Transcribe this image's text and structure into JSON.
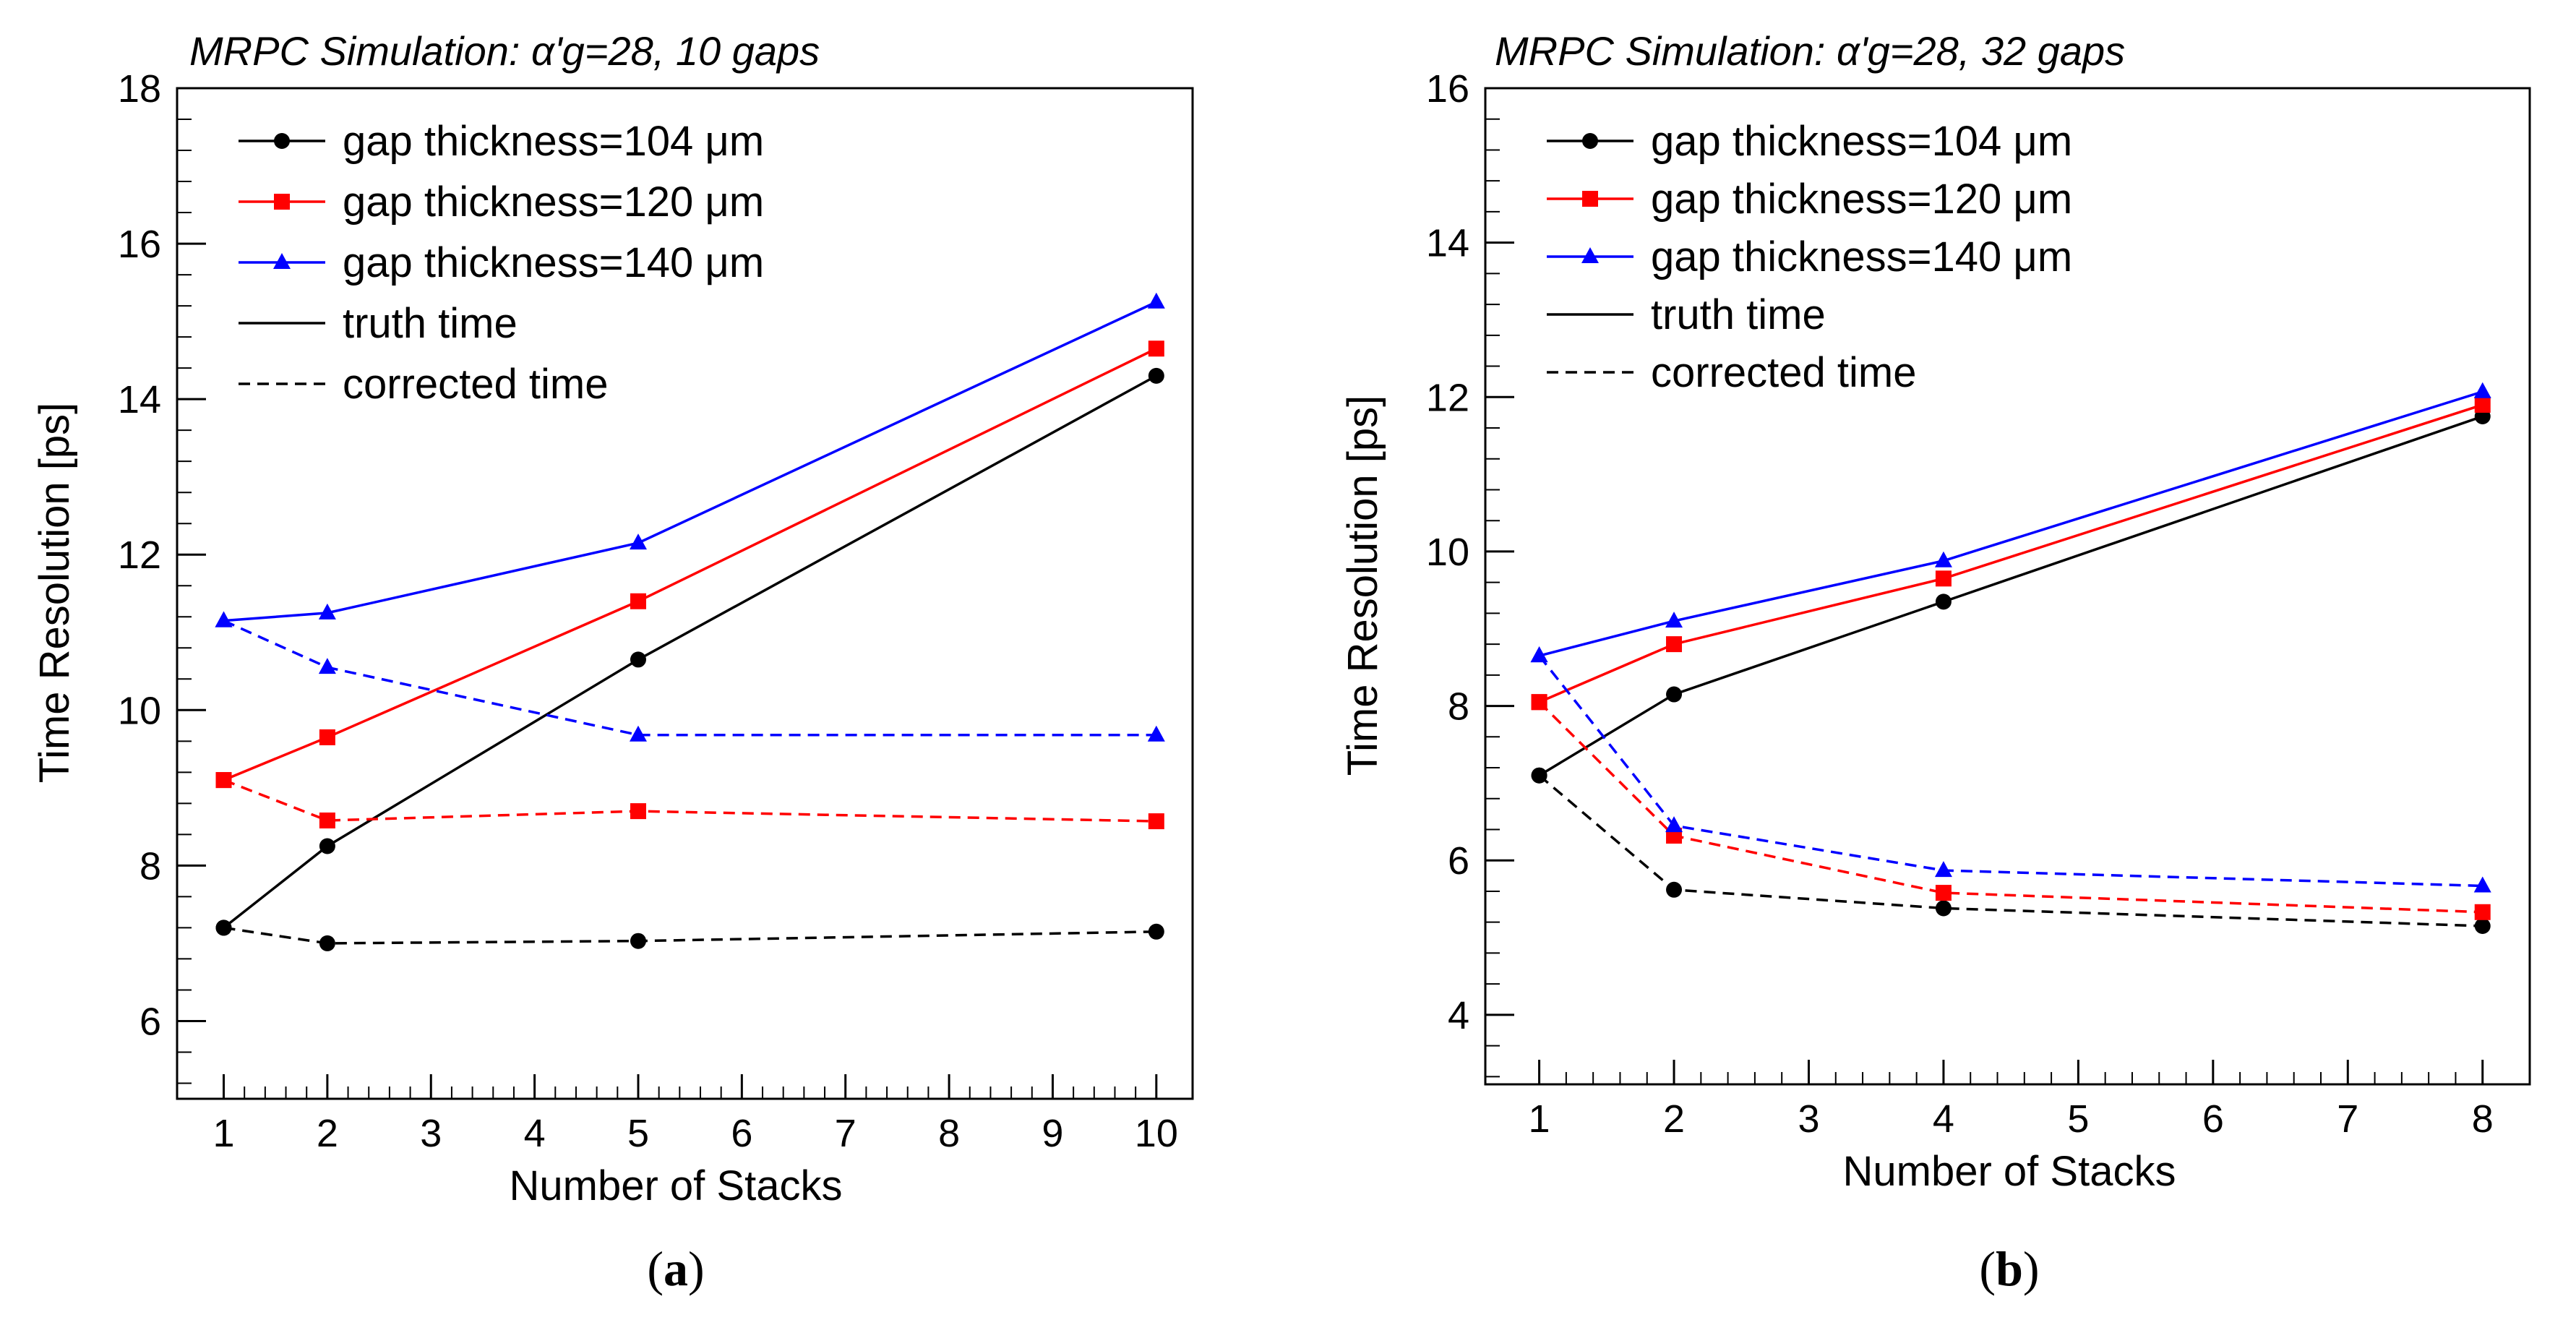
{
  "chart_data": [
    {
      "type": "line",
      "panel_label": "a",
      "title": "MRPC Simulation:  α'g=28, 10 gaps",
      "xlabel": "Number of Stacks",
      "ylabel": "Time Resolution [ps]",
      "xlim": [
        0.55,
        10.35
      ],
      "ylim": [
        5.0,
        18.0
      ],
      "x_ticks": [
        1,
        2,
        3,
        4,
        5,
        6,
        7,
        8,
        9,
        10
      ],
      "y_ticks": [
        6,
        8,
        10,
        12,
        14,
        16,
        18
      ],
      "x": [
        1,
        2,
        5,
        10
      ],
      "legend": [
        {
          "label": "gap thickness=104 μm",
          "color": "#000000",
          "marker": "circle",
          "style": "solid"
        },
        {
          "label": "gap thickness=120 μm",
          "color": "#ff0000",
          "marker": "square",
          "style": "solid"
        },
        {
          "label": "gap thickness=140 μm",
          "color": "#0000ff",
          "marker": "triangle",
          "style": "solid"
        },
        {
          "label": "truth time",
          "color": "#000000",
          "marker": "none",
          "style": "solid"
        },
        {
          "label": "corrected time",
          "color": "#000000",
          "marker": "none",
          "style": "dashed"
        }
      ],
      "series": [
        {
          "name": "104 μm truth",
          "color": "#000000",
          "marker": "circle",
          "style": "solid",
          "values": [
            7.2,
            8.25,
            10.65,
            14.3
          ]
        },
        {
          "name": "120 μm truth",
          "color": "#ff0000",
          "marker": "square",
          "style": "solid",
          "values": [
            9.1,
            9.65,
            11.4,
            14.65
          ]
        },
        {
          "name": "140 μm truth",
          "color": "#0000ff",
          "marker": "triangle",
          "style": "solid",
          "values": [
            11.15,
            11.25,
            12.15,
            15.25
          ]
        },
        {
          "name": "104 μm corrected",
          "color": "#000000",
          "marker": "circle",
          "style": "dashed",
          "values": [
            7.2,
            7.0,
            7.03,
            7.15
          ]
        },
        {
          "name": "120 μm corrected",
          "color": "#ff0000",
          "marker": "square",
          "style": "dashed",
          "values": [
            9.1,
            8.58,
            8.7,
            8.57
          ]
        },
        {
          "name": "140 μm corrected",
          "color": "#0000ff",
          "marker": "triangle",
          "style": "dashed",
          "values": [
            11.15,
            10.55,
            9.68,
            9.68
          ]
        }
      ]
    },
    {
      "type": "line",
      "panel_label": "b",
      "title": "MRPC Simulation:  α'g=28, 32 gaps",
      "xlabel": "Number of Stacks",
      "ylabel": "Time Resolution [ps]",
      "xlim": [
        0.6,
        8.35
      ],
      "ylim": [
        3.1,
        16.0
      ],
      "x_ticks": [
        1,
        2,
        3,
        4,
        5,
        6,
        7,
        8
      ],
      "y_ticks": [
        4,
        6,
        8,
        10,
        12,
        14,
        16
      ],
      "x": [
        1,
        2,
        4,
        8
      ],
      "legend": [
        {
          "label": "gap thickness=104 μm",
          "color": "#000000",
          "marker": "circle",
          "style": "solid"
        },
        {
          "label": "gap thickness=120 μm",
          "color": "#ff0000",
          "marker": "square",
          "style": "solid"
        },
        {
          "label": "gap thickness=140 μm",
          "color": "#0000ff",
          "marker": "triangle",
          "style": "solid"
        },
        {
          "label": "truth time",
          "color": "#000000",
          "marker": "none",
          "style": "solid"
        },
        {
          "label": "corrected time",
          "color": "#000000",
          "marker": "none",
          "style": "dashed"
        }
      ],
      "series": [
        {
          "name": "104 μm truth",
          "color": "#000000",
          "marker": "circle",
          "style": "solid",
          "values": [
            7.1,
            8.15,
            9.35,
            11.75
          ]
        },
        {
          "name": "120 μm truth",
          "color": "#ff0000",
          "marker": "square",
          "style": "solid",
          "values": [
            8.05,
            8.8,
            9.65,
            11.9
          ]
        },
        {
          "name": "140 μm truth",
          "color": "#0000ff",
          "marker": "triangle",
          "style": "solid",
          "values": [
            8.65,
            9.1,
            9.88,
            12.07
          ]
        },
        {
          "name": "104 μm corrected",
          "color": "#000000",
          "marker": "circle",
          "style": "dashed",
          "values": [
            7.1,
            5.62,
            5.38,
            5.15
          ]
        },
        {
          "name": "120 μm corrected",
          "color": "#ff0000",
          "marker": "square",
          "style": "dashed",
          "values": [
            8.05,
            6.32,
            5.58,
            5.33
          ]
        },
        {
          "name": "140 μm corrected",
          "color": "#0000ff",
          "marker": "triangle",
          "style": "dashed",
          "values": [
            8.65,
            6.45,
            5.87,
            5.67
          ]
        }
      ]
    }
  ]
}
